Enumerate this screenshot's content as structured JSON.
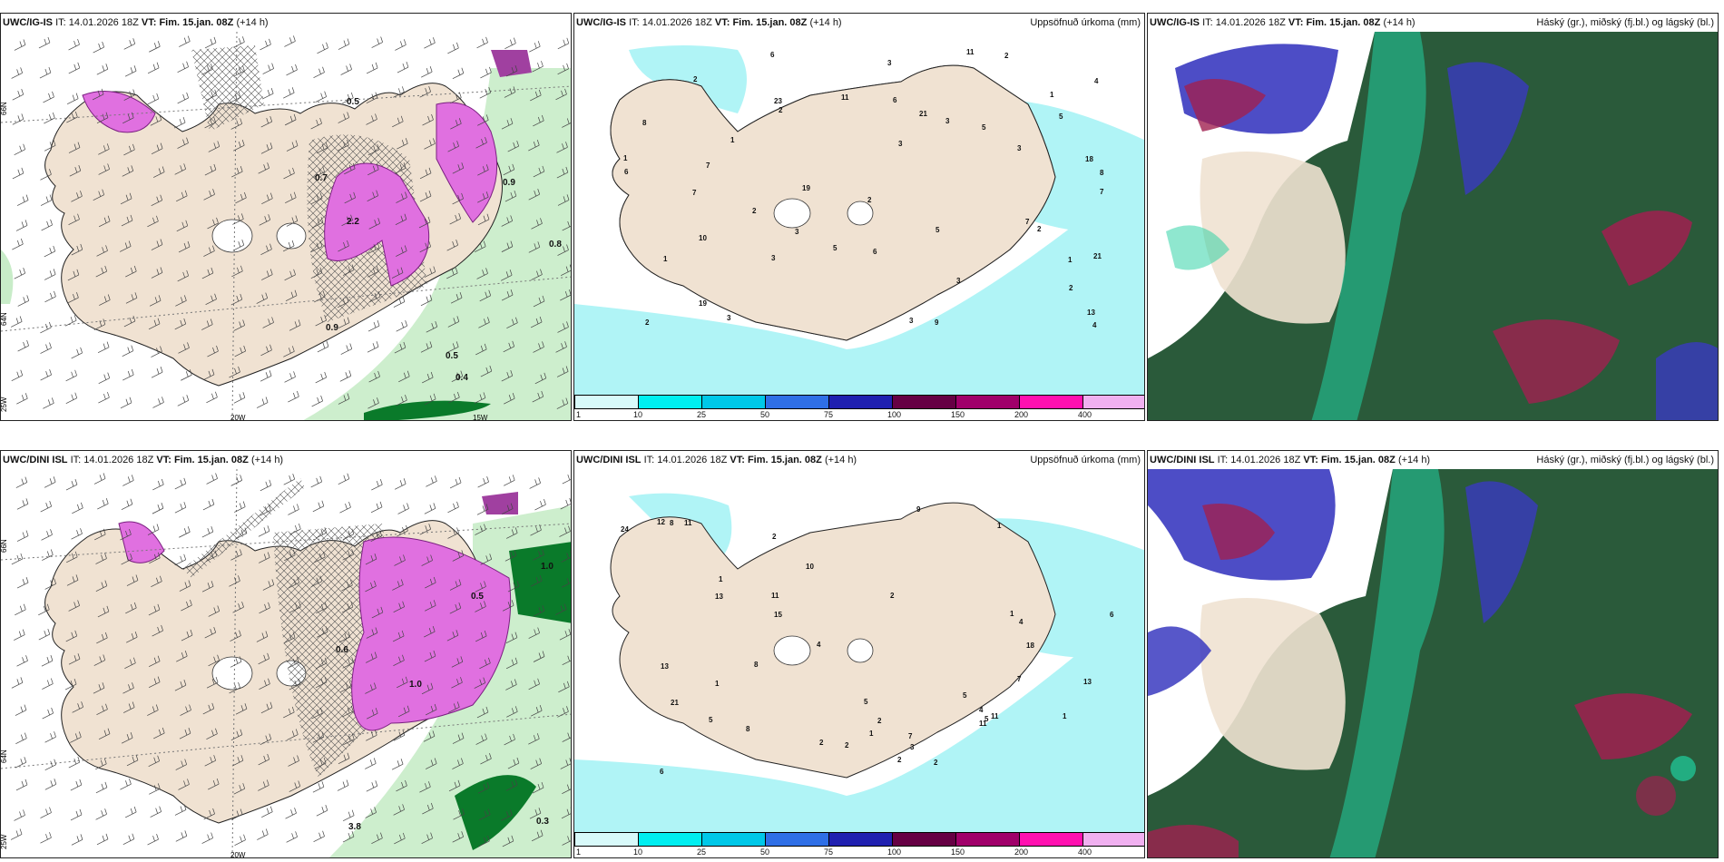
{
  "rows": [
    {
      "panels": [
        {
          "model": "UWC/IG-IS",
          "it_label": "IT:",
          "it": "14.01.2026 18Z",
          "vt_label": "VT:",
          "vt": "Fim. 15.jan. 08Z",
          "lead": "(+14 h)",
          "right": ""
        },
        {
          "model": "UWC/IG-IS",
          "it_label": "IT:",
          "it": "14.01.2026 18Z",
          "vt_label": "VT:",
          "vt": "Fim. 15.jan. 08Z",
          "lead": "(+14 h)",
          "right": "Uppsöfnuð úrkoma (mm)"
        },
        {
          "model": "UWC/IG-IS",
          "it_label": "IT:",
          "it": "14.01.2026 18Z",
          "vt_label": "VT:",
          "vt": "Fim. 15.jan. 08Z",
          "lead": "(+14 h)",
          "right": "Háský (gr.), miðský (fj.bl.) og lágský (bl.)"
        }
      ]
    },
    {
      "panels": [
        {
          "model": "UWC/DINI ISL",
          "it_label": "IT:",
          "it": "14.01.2026 18Z",
          "vt_label": "VT:",
          "vt": "Fim. 15.jan. 08Z",
          "lead": "(+14 h)",
          "right": ""
        },
        {
          "model": "UWC/DINI ISL",
          "it_label": "IT:",
          "it": "14.01.2026 18Z",
          "vt_label": "VT:",
          "vt": "Fim. 15.jan. 08Z",
          "lead": "(+14 h)",
          "right": "Uppsöfnuð úrkoma (mm)"
        },
        {
          "model": "UWC/DINI ISL",
          "it_label": "IT:",
          "it": "14.01.2026 18Z",
          "vt_label": "VT:",
          "vt": "Fim. 15.jan. 08Z",
          "lead": "(+14 h)",
          "right": "Háský (gr.), miðský (fj.bl.) og lágský (bl.)"
        }
      ]
    }
  ],
  "grid_labels": {
    "lat66": "66N",
    "lat64": "64N",
    "lon25": "25W",
    "lon20": "20W",
    "lon15": "15W"
  },
  "colorbar": {
    "labels": [
      "1",
      "10",
      "25",
      "50",
      "75",
      "100",
      "150",
      "200",
      "400"
    ],
    "colors": [
      "#d8fafa",
      "#00eef0",
      "#00c8e8",
      "#2f6fe6",
      "#2020b0",
      "#660044",
      "#a0006a",
      "#ff10b0",
      "#f0b0f0"
    ]
  },
  "precip_top": [
    "2",
    "18",
    "3",
    "8",
    "19",
    "21",
    "3",
    "11",
    "1",
    "1",
    "1",
    "2",
    "3",
    "3",
    "1",
    "2",
    "2",
    "1",
    "6",
    "11",
    "13",
    "6",
    "19",
    "10",
    "3",
    "2",
    "2",
    "3",
    "3",
    "4",
    "3",
    "4",
    "7",
    "3",
    "7",
    "6",
    "7",
    "5",
    "5",
    "7",
    "9",
    "8",
    "5",
    "6",
    "2",
    "2",
    "21",
    "5",
    "23"
  ],
  "precip_bottom": [
    "2",
    "2",
    "2",
    "24",
    "6",
    "21",
    "1",
    "13",
    "1",
    "1",
    "1",
    "1",
    "2",
    "2",
    "1",
    "3",
    "4",
    "5",
    "13",
    "4",
    "11",
    "18",
    "13",
    "15",
    "7",
    "8",
    "9",
    "2",
    "2",
    "11",
    "12",
    "5",
    "7",
    "5",
    "11",
    "10",
    "8",
    "11",
    "4",
    "8",
    "6",
    "5"
  ],
  "wind_labels_top": [
    "0.4",
    "0.5",
    "0.9",
    "0.7",
    "0.9",
    "0.5",
    "0.8",
    "2.2"
  ],
  "wind_labels_bottom": [
    "0.3",
    "0.6",
    "1.0",
    "1.0",
    "0.5",
    "3.8"
  ],
  "colors": {
    "land": "#f0e2d2",
    "green_light": "#c8ecc8",
    "green_dark": "#0a7a2a",
    "magenta": "#e070e0",
    "cyan_light": "#b0f4f6",
    "cloud_high": "#2a5a3a",
    "cloud_mid": "#3a3ac0",
    "cloud_low": "#a02050"
  }
}
